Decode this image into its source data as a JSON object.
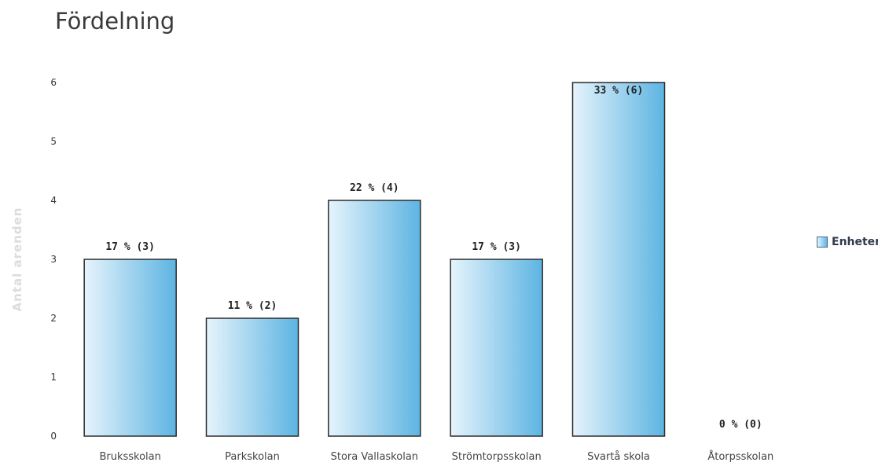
{
  "title": "Fördelning",
  "legend": {
    "label": "Enheter"
  },
  "chart_data": {
    "type": "bar",
    "ylabel": "Antal arenden",
    "xlabel": "",
    "ylim": [
      0,
      6
    ],
    "yticks": [
      0,
      1,
      2,
      3,
      4,
      5,
      6
    ],
    "grid": false,
    "legend_position": "right",
    "categories": [
      "Bruksskolan",
      "Parkskolan",
      "Stora Vallaskolan",
      "Strömtorpsskolan",
      "Svartå skola",
      "Åtorpsskolan"
    ],
    "series": [
      {
        "name": "Enheter",
        "values": [
          3,
          2,
          4,
          3,
          6,
          0
        ],
        "labels": [
          "17 % (3)",
          "11 % (2)",
          "22 % (4)",
          "17 % (3)",
          "33 % (6)",
          "0 % (0)"
        ]
      }
    ],
    "colors": {
      "bar_light": "#e6f4fc",
      "bar_dark": "#5db4e2",
      "bar_border": "#2b2b2b"
    }
  }
}
